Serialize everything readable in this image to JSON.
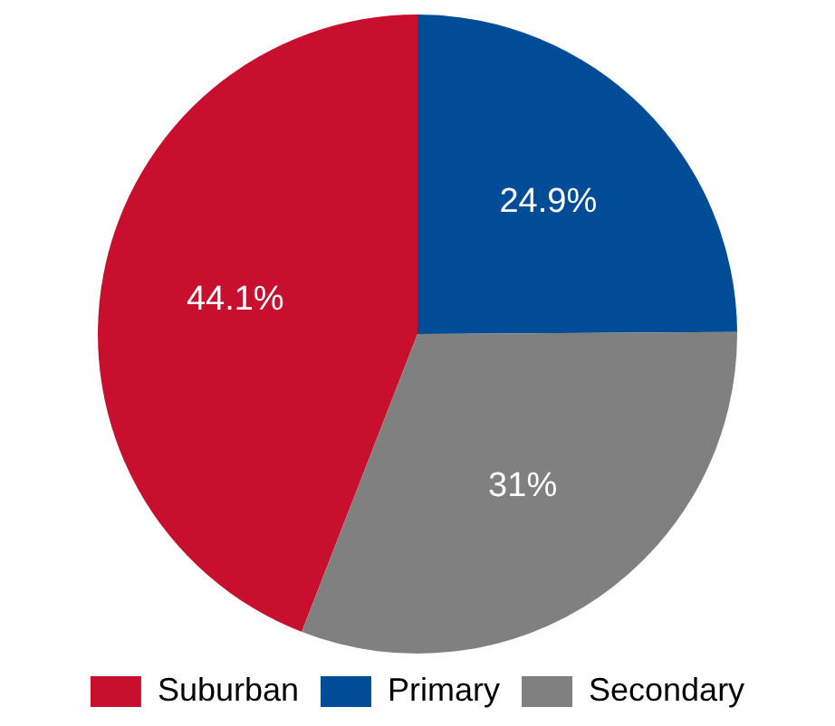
{
  "chart_data": {
    "type": "pie",
    "categories": [
      "Suburban",
      "Primary",
      "Secondary"
    ],
    "values": [
      44.1,
      24.9,
      31
    ],
    "colors": [
      "#c8102e",
      "#004c97",
      "#808080"
    ],
    "value_labels": [
      "44.1%",
      "24.9%",
      "31%"
    ],
    "legend": "bottom"
  }
}
